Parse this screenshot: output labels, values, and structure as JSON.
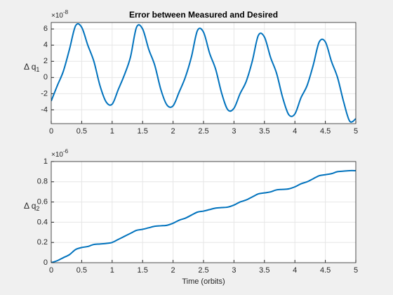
{
  "chart_data": [
    {
      "type": "line",
      "title": "Error between Measured and Desired",
      "ylabel": "Δ q",
      "ylabel_subscript": "1",
      "y_multiplier": "×10",
      "y_multiplier_exponent": "-8",
      "x": [
        0,
        0.1,
        0.2,
        0.3,
        0.4,
        0.5,
        0.6,
        0.7,
        0.8,
        0.9,
        1,
        1.1,
        1.2,
        1.3,
        1.4,
        1.5,
        1.6,
        1.7,
        1.8,
        1.9,
        2,
        2.1,
        2.2,
        2.3,
        2.4,
        2.5,
        2.6,
        2.7,
        2.8,
        2.9,
        3,
        3.1,
        3.2,
        3.3,
        3.4,
        3.5,
        3.6,
        3.7,
        3.8,
        3.9,
        4,
        4.1,
        4.2,
        4.3,
        4.4,
        4.5,
        4.6,
        4.7,
        4.8,
        4.9,
        5
      ],
      "series": [
        {
          "color": "#0072bd",
          "values": [
            -2.9,
            -1.0,
            0.8,
            3.5,
            6.4,
            6.2,
            4.0,
            2.0,
            -1.0,
            -3.0,
            -3.3,
            -1.5,
            0.3,
            2.5,
            6.2,
            6.0,
            3.5,
            1.5,
            -1.5,
            -3.4,
            -3.5,
            -1.8,
            0,
            2.5,
            5.8,
            5.6,
            3.0,
            1.0,
            -2.0,
            -4.0,
            -3.8,
            -2.0,
            -0.5,
            2.0,
            5.2,
            5.0,
            2.5,
            0.5,
            -2.5,
            -4.6,
            -4.5,
            -2.5,
            -1.0,
            1.5,
            4.4,
            4.4,
            2.0,
            0,
            -3.0,
            -5.4,
            -5.1
          ]
        }
      ],
      "xlim": [
        0,
        5
      ],
      "xticks": [
        0,
        0.5,
        1,
        1.5,
        2,
        2.5,
        3,
        3.5,
        4,
        4.5,
        5
      ],
      "ylim": [
        -5.7,
        6.8
      ],
      "yticks": [
        -4,
        -2,
        0,
        2,
        4,
        6
      ],
      "grid": true
    },
    {
      "type": "line",
      "xlabel": "Time (orbits)",
      "ylabel": "Δ q",
      "ylabel_subscript": "2",
      "y_multiplier": "×10",
      "y_multiplier_exponent": "-6",
      "x": [
        0,
        0.1,
        0.2,
        0.3,
        0.4,
        0.5,
        0.6,
        0.7,
        0.8,
        0.9,
        1,
        1.1,
        1.2,
        1.3,
        1.4,
        1.5,
        1.6,
        1.7,
        1.8,
        1.9,
        2,
        2.1,
        2.2,
        2.3,
        2.4,
        2.5,
        2.6,
        2.7,
        2.8,
        2.9,
        3,
        3.1,
        3.2,
        3.3,
        3.4,
        3.5,
        3.6,
        3.7,
        3.8,
        3.9,
        4,
        4.1,
        4.2,
        4.3,
        4.4,
        4.5,
        4.6,
        4.7,
        4.8,
        4.9,
        5
      ],
      "series": [
        {
          "color": "#0072bd",
          "values": [
            0,
            0.02,
            0.05,
            0.08,
            0.13,
            0.15,
            0.16,
            0.18,
            0.185,
            0.19,
            0.2,
            0.23,
            0.26,
            0.29,
            0.32,
            0.33,
            0.345,
            0.36,
            0.365,
            0.37,
            0.39,
            0.42,
            0.44,
            0.47,
            0.5,
            0.51,
            0.525,
            0.54,
            0.545,
            0.55,
            0.57,
            0.6,
            0.62,
            0.65,
            0.68,
            0.69,
            0.7,
            0.72,
            0.725,
            0.73,
            0.75,
            0.78,
            0.8,
            0.83,
            0.86,
            0.87,
            0.88,
            0.9,
            0.905,
            0.91,
            0.91
          ]
        }
      ],
      "xlim": [
        0,
        5
      ],
      "xticks": [
        0,
        0.5,
        1,
        1.5,
        2,
        2.5,
        3,
        3.5,
        4,
        4.5,
        5
      ],
      "ylim": [
        0,
        1
      ],
      "yticks": [
        0,
        0.2,
        0.4,
        0.6,
        0.8,
        1
      ],
      "grid": true
    }
  ]
}
